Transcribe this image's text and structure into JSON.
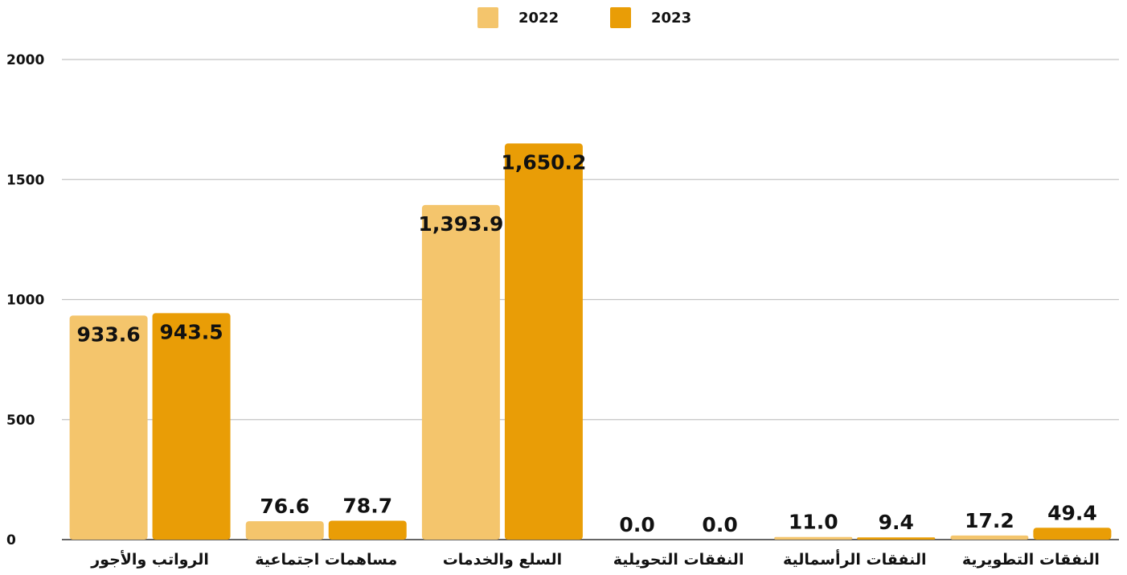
{
  "chart_data": {
    "type": "bar",
    "categories": [
      "الرواتب والأجور",
      "مساهمات اجتماعية",
      "السلع والخدمات",
      "النفقات التحويلية",
      "النفقات الرأسمالية",
      "النفقات التطويرية"
    ],
    "series": [
      {
        "name": "2022",
        "color": "#f4c56c",
        "values": [
          933.6,
          76.6,
          1393.9,
          0.0,
          11.0,
          17.2
        ],
        "labels": [
          "933.6",
          "76.6",
          "1,393.9",
          "0.0",
          "11.0",
          "17.2"
        ]
      },
      {
        "name": "2023",
        "color": "#e99d06",
        "values": [
          943.5,
          78.7,
          1650.2,
          0.0,
          9.4,
          49.4
        ],
        "labels": [
          "943.5",
          "78.7",
          "1,650.2",
          "0.0",
          "9.4",
          "49.4"
        ]
      }
    ],
    "yticks": [
      "0",
      "500",
      "1000",
      "1500",
      "2000"
    ],
    "ylim": [
      0,
      2000
    ],
    "grid": true,
    "legend_position": "top-center"
  }
}
